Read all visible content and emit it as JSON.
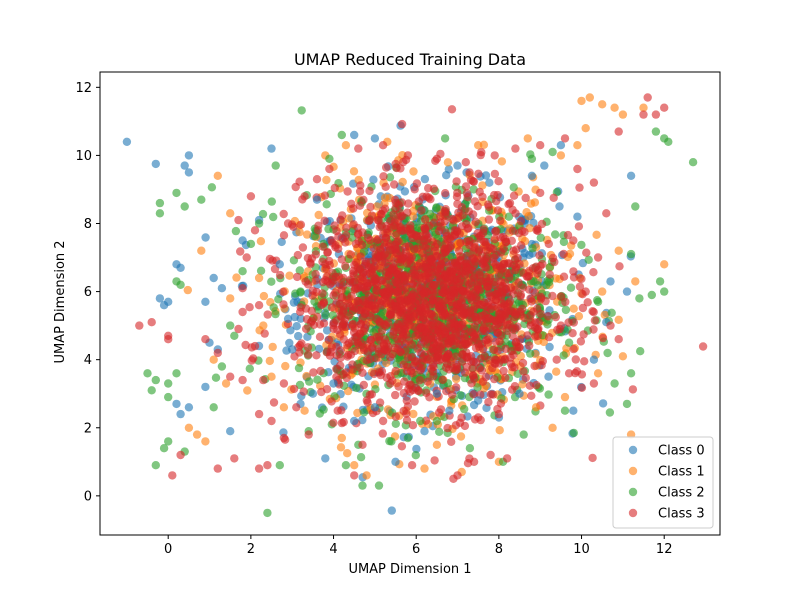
{
  "chart_data": {
    "type": "scatter",
    "title": "UMAP Reduced Training Data",
    "xlabel": "UMAP Dimension 1",
    "ylabel": "UMAP Dimension 2",
    "xlim": [
      -1.65,
      13.35
    ],
    "ylim": [
      -1.15,
      12.45
    ],
    "xticks": [
      0,
      2,
      4,
      6,
      8,
      10,
      12
    ],
    "yticks": [
      0,
      2,
      4,
      6,
      8,
      10,
      12
    ],
    "grid": false,
    "legend_position": "lower-right",
    "series": [
      {
        "name": "Class 0",
        "color": "#1f77b4",
        "points": [
          [
            -1.0,
            10.4
          ],
          [
            -0.3,
            9.75
          ],
          [
            0.4,
            9.7
          ],
          [
            0.5,
            10.0
          ],
          [
            0.5,
            9.5
          ],
          [
            0.2,
            6.8
          ],
          [
            0.3,
            6.7
          ],
          [
            -0.2,
            5.8
          ],
          [
            -0.1,
            5.6
          ],
          [
            0.0,
            5.7
          ],
          [
            0.9,
            5.7
          ],
          [
            1.1,
            6.4
          ],
          [
            1.3,
            6.1
          ],
          [
            1.0,
            4.5
          ],
          [
            1.2,
            4.3
          ],
          [
            0.9,
            3.2
          ],
          [
            0.5,
            2.6
          ],
          [
            0.3,
            2.4
          ],
          [
            0.2,
            2.7
          ],
          [
            1.5,
            1.9
          ],
          [
            2.5,
            10.2
          ],
          [
            1.8,
            7.5
          ],
          [
            2.2,
            8.1
          ],
          [
            2.7,
            6.8
          ],
          [
            2.9,
            5.2
          ],
          [
            3.0,
            4.3
          ],
          [
            3.2,
            2.7
          ],
          [
            3.5,
            3.0
          ],
          [
            3.8,
            1.1
          ],
          [
            4.0,
            3.3
          ],
          [
            4.5,
            2.2
          ],
          [
            4.5,
            10.6
          ],
          [
            5.0,
            10.5
          ],
          [
            5.5,
            1.0
          ],
          [
            6.2,
            1.9
          ],
          [
            6.8,
            2.5
          ],
          [
            7.5,
            2.8
          ],
          [
            8.0,
            2.3
          ],
          [
            8.5,
            3.0
          ],
          [
            9.1,
            9.7
          ],
          [
            9.5,
            10.3
          ],
          [
            9.8,
            2.5
          ],
          [
            10.3,
            4.0
          ],
          [
            10.6,
            5.1
          ],
          [
            11.2,
            9.4
          ],
          [
            11.1,
            6.0
          ],
          [
            10.7,
            6.3
          ],
          [
            9.9,
            8.2
          ],
          [
            8.8,
            9.4
          ],
          [
            7.0,
            9.7
          ],
          [
            6.5,
            3.0
          ],
          [
            5.0,
            2.6
          ],
          [
            3.6,
            8.7
          ],
          [
            9.2,
            3.5
          ]
        ]
      },
      {
        "name": "Class 1",
        "color": "#ff7f0e",
        "points": [
          [
            1.2,
            9.4
          ],
          [
            0.8,
            7.2
          ],
          [
            1.5,
            8.3
          ],
          [
            1.1,
            4.0
          ],
          [
            1.4,
            3.3
          ],
          [
            0.7,
            1.8
          ],
          [
            0.5,
            2.0
          ],
          [
            0.9,
            1.6
          ],
          [
            2.2,
            6.4
          ],
          [
            2.5,
            3.5
          ],
          [
            2.8,
            2.6
          ],
          [
            3.3,
            2.5
          ],
          [
            4.2,
            1.7
          ],
          [
            4.5,
            0.9
          ],
          [
            4.8,
            0.6
          ],
          [
            6.2,
            0.8
          ],
          [
            7.1,
            0.7
          ],
          [
            8.0,
            1.0
          ],
          [
            9.3,
            2.0
          ],
          [
            9.6,
            2.9
          ],
          [
            10.0,
            11.6
          ],
          [
            10.2,
            11.7
          ],
          [
            10.5,
            11.5
          ],
          [
            10.8,
            11.4
          ],
          [
            11.0,
            11.2
          ],
          [
            11.5,
            11.4
          ],
          [
            10.1,
            10.8
          ],
          [
            9.9,
            10.3
          ],
          [
            9.5,
            10.0
          ],
          [
            10.9,
            7.2
          ],
          [
            11.3,
            6.3
          ],
          [
            12.0,
            6.8
          ],
          [
            10.5,
            6.0
          ],
          [
            11.0,
            4.1
          ],
          [
            10.4,
            3.6
          ],
          [
            11.2,
            1.8
          ],
          [
            8.7,
            10.5
          ],
          [
            7.5,
            10.3
          ],
          [
            5.3,
            10.4
          ],
          [
            4.3,
            10.3
          ],
          [
            3.8,
            10.0
          ],
          [
            6.5,
            1.5
          ],
          [
            8.9,
            2.6
          ],
          [
            2.3,
            5.0
          ],
          [
            1.5,
            5.8
          ]
        ]
      },
      {
        "name": "Class 2",
        "color": "#2ca02c",
        "points": [
          [
            -0.2,
            8.6
          ],
          [
            -0.2,
            8.3
          ],
          [
            0.2,
            8.9
          ],
          [
            0.4,
            8.5
          ],
          [
            0.8,
            8.7
          ],
          [
            0.2,
            6.3
          ],
          [
            0.3,
            6.2
          ],
          [
            -0.5,
            3.6
          ],
          [
            -0.3,
            3.4
          ],
          [
            -0.4,
            3.1
          ],
          [
            0.0,
            3.3
          ],
          [
            0.0,
            2.9
          ],
          [
            0.2,
            3.6
          ],
          [
            -0.1,
            1.4
          ],
          [
            0.0,
            1.6
          ],
          [
            -0.3,
            0.9
          ],
          [
            0.4,
            1.3
          ],
          [
            1.1,
            2.6
          ],
          [
            1.3,
            3.8
          ],
          [
            1.6,
            4.7
          ],
          [
            1.5,
            5.0
          ],
          [
            1.8,
            6.6
          ],
          [
            2.0,
            7.4
          ],
          [
            2.2,
            8.0
          ],
          [
            2.6,
            9.7
          ],
          [
            2.4,
            -0.5
          ],
          [
            2.7,
            0.9
          ],
          [
            3.4,
            1.9
          ],
          [
            4.3,
            0.9
          ],
          [
            4.7,
            0.3
          ],
          [
            5.1,
            0.3
          ],
          [
            5.4,
            1.6
          ],
          [
            6.1,
            2.2
          ],
          [
            7.3,
            1.4
          ],
          [
            8.1,
            1.0
          ],
          [
            8.6,
            1.8
          ],
          [
            9.6,
            2.5
          ],
          [
            10.8,
            3.3
          ],
          [
            11.1,
            2.7
          ],
          [
            11.2,
            3.6
          ],
          [
            11.4,
            5.8
          ],
          [
            11.7,
            5.9
          ],
          [
            11.9,
            6.3
          ],
          [
            12.0,
            6.0
          ],
          [
            11.2,
            7.1
          ],
          [
            11.3,
            8.5
          ],
          [
            11.8,
            10.7
          ],
          [
            12.0,
            10.5
          ],
          [
            12.1,
            10.4
          ],
          [
            12.7,
            9.8
          ],
          [
            9.3,
            10.1
          ],
          [
            8.8,
            9.9
          ],
          [
            6.7,
            10.5
          ],
          [
            4.2,
            10.6
          ],
          [
            3.9,
            9.9
          ],
          [
            3.2,
            6.0
          ],
          [
            9.7,
            4.5
          ],
          [
            10.4,
            5.7
          ],
          [
            5.8,
            1.7
          ],
          [
            4.6,
            1.5
          ]
        ]
      },
      {
        "name": "Class 3",
        "color": "#d62728",
        "points": [
          [
            -0.7,
            5.0
          ],
          [
            -0.4,
            5.1
          ],
          [
            0.0,
            4.7
          ],
          [
            0.0,
            4.6
          ],
          [
            0.9,
            4.6
          ],
          [
            1.2,
            4.2
          ],
          [
            1.5,
            3.5
          ],
          [
            1.8,
            3.4
          ],
          [
            0.3,
            1.2
          ],
          [
            0.1,
            0.6
          ],
          [
            1.2,
            0.8
          ],
          [
            1.6,
            1.1
          ],
          [
            2.2,
            0.8
          ],
          [
            2.4,
            0.9
          ],
          [
            2.2,
            2.4
          ],
          [
            2.5,
            2.2
          ],
          [
            2.8,
            1.7
          ],
          [
            2.3,
            3.4
          ],
          [
            2.1,
            4.4
          ],
          [
            1.7,
            4.9
          ],
          [
            1.8,
            5.4
          ],
          [
            2.2,
            5.6
          ],
          [
            1.8,
            6.1
          ],
          [
            1.9,
            7.0
          ],
          [
            2.1,
            7.8
          ],
          [
            1.7,
            8.1
          ],
          [
            2.0,
            8.8
          ],
          [
            2.9,
            8.0
          ],
          [
            3.3,
            8.8
          ],
          [
            3.6,
            9.3
          ],
          [
            3.9,
            9.6
          ],
          [
            4.6,
            10.2
          ],
          [
            5.2,
            10.3
          ],
          [
            5.8,
            10.0
          ],
          [
            6.5,
            9.9
          ],
          [
            7.2,
            9.8
          ],
          [
            7.9,
            10.0
          ],
          [
            8.4,
            10.2
          ],
          [
            9.0,
            10.3
          ],
          [
            9.6,
            10.5
          ],
          [
            10.9,
            10.7
          ],
          [
            11.6,
            11.7
          ],
          [
            11.8,
            11.2
          ],
          [
            12.0,
            11.4
          ],
          [
            11.5,
            11.2
          ],
          [
            9.9,
            9.6
          ],
          [
            10.3,
            9.2
          ],
          [
            10.6,
            8.3
          ],
          [
            10.4,
            7.0
          ],
          [
            10.7,
            5.0
          ],
          [
            10.9,
            4.6
          ],
          [
            10.3,
            3.3
          ],
          [
            9.7,
            3.6
          ],
          [
            9.4,
            4.0
          ],
          [
            8.2,
            1.1
          ],
          [
            7.8,
            1.2
          ],
          [
            7.4,
            1.0
          ],
          [
            7.0,
            0.6
          ],
          [
            6.9,
            0.5
          ],
          [
            8.0,
            2.4
          ],
          [
            7.5,
            2.3
          ],
          [
            5.2,
            2.2
          ],
          [
            4.7,
            1.5
          ],
          [
            4.1,
            2.5
          ],
          [
            3.4,
            1.8
          ],
          [
            3.1,
            2.6
          ],
          [
            2.8,
            3.3
          ],
          [
            4.5,
            0.6
          ],
          [
            5.9,
            0.9
          ],
          [
            9.0,
            8.9
          ],
          [
            9.8,
            7.5
          ],
          [
            10.1,
            6.0
          ],
          [
            9.5,
            5.0
          ]
        ]
      }
    ],
    "cluster": {
      "center": [
        6.3,
        5.8
      ],
      "spread": [
        1.55,
        1.55
      ],
      "color_order": [
        "#1f77b4",
        "#ff7f0e",
        "#2ca02c",
        "#d62728"
      ]
    }
  }
}
